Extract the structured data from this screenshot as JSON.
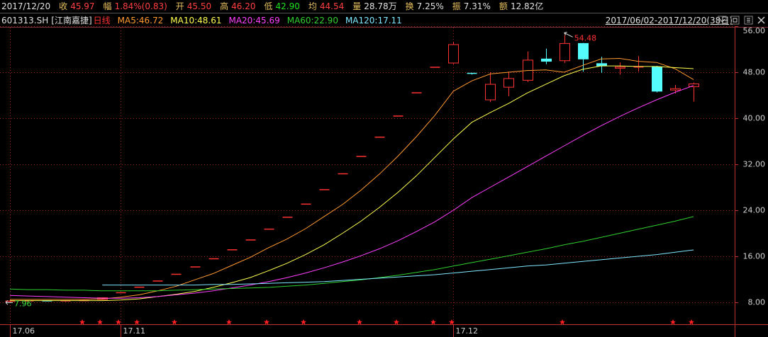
{
  "header": {
    "date": "2017/12/20",
    "quote": [
      {
        "label": "收",
        "value": "45.97",
        "color": "#ff4040"
      },
      {
        "label": "幅",
        "value": "1.84%(0.83)",
        "color": "#ff4040"
      },
      {
        "label": "开",
        "value": "45.50",
        "color": "#ff4040"
      },
      {
        "label": "高",
        "value": "46.20",
        "color": "#ff4040"
      },
      {
        "label": "低",
        "value": "42.90",
        "color": "#20e020"
      },
      {
        "label": "均",
        "value": "44.54",
        "color": "#ff4040"
      },
      {
        "label": "量",
        "value": "28.78万",
        "color": "#e0e0e0"
      },
      {
        "label": "换",
        "value": "7.25%",
        "color": "#e0e0e0"
      },
      {
        "label": "振",
        "value": "7.31%",
        "color": "#e0e0e0"
      },
      {
        "label": "额",
        "value": "12.82亿",
        "color": "#e0e0e0"
      }
    ]
  },
  "chart_data": {
    "type": "candlestick",
    "code": "601313.SH",
    "name": "[江南嘉捷]",
    "period": "日线",
    "range": "2017/06/02-2017/12/20(38日)",
    "categories": [
      "17.06",
      null,
      null,
      null,
      null,
      null,
      "17.11",
      null,
      null,
      null,
      null,
      null,
      null,
      null,
      null,
      null,
      null,
      null,
      null,
      null,
      null,
      null,
      null,
      null,
      "17.12",
      null,
      null,
      null,
      null,
      null,
      null,
      null,
      null,
      null,
      null,
      null,
      null,
      null
    ],
    "open": [
      8.1,
      8.2,
      8.25,
      8.2,
      8.25,
      8.5,
      9.67,
      10.63,
      11.7,
      12.87,
      14.15,
      15.57,
      17.13,
      18.84,
      20.72,
      22.79,
      25.07,
      27.58,
      30.34,
      33.37,
      36.71,
      40.38,
      44.42,
      48.86,
      49.6,
      47.8,
      43.2,
      45.4,
      46.6,
      50.3,
      50.0,
      53.0,
      49.5,
      48.7,
      48.8,
      48.9,
      44.9,
      45.5
    ],
    "high": [
      8.3,
      8.35,
      8.3,
      8.3,
      8.4,
      8.85,
      9.67,
      10.63,
      11.7,
      12.87,
      14.15,
      15.57,
      17.13,
      18.84,
      20.72,
      22.79,
      25.07,
      27.58,
      30.34,
      33.37,
      36.71,
      40.38,
      44.42,
      48.86,
      53.3,
      47.9,
      48.0,
      48.1,
      51.6,
      52.1,
      54.48,
      53.1,
      50.7,
      49.7,
      50.8,
      49.1,
      45.8,
      46.2
    ],
    "low": [
      7.96,
      8.1,
      8.15,
      8.1,
      8.2,
      8.45,
      9.67,
      10.63,
      11.7,
      12.87,
      14.15,
      15.57,
      17.13,
      18.84,
      20.72,
      22.79,
      25.07,
      27.58,
      30.34,
      33.37,
      36.71,
      40.38,
      44.42,
      48.86,
      49.4,
      47.6,
      42.8,
      43.8,
      46.3,
      49.4,
      49.6,
      48.1,
      47.9,
      47.6,
      48.1,
      44.5,
      44.3,
      42.9
    ],
    "close": [
      8.2,
      8.25,
      8.2,
      8.25,
      8.3,
      8.79,
      9.67,
      10.63,
      11.7,
      12.87,
      14.15,
      15.57,
      17.13,
      18.84,
      20.72,
      22.79,
      25.07,
      27.58,
      30.34,
      33.37,
      36.71,
      40.38,
      44.42,
      48.86,
      52.8,
      47.7,
      45.9,
      46.9,
      50.1,
      49.9,
      53.0,
      50.3,
      49.1,
      48.9,
      48.9,
      44.7,
      45.14,
      45.97
    ],
    "up_color": "#ff3232",
    "down_color": "#54fcfc",
    "series": [
      {
        "name": "MA5:46.72",
        "color": "#ff9a30",
        "values": [
          8.5,
          8.5,
          8.5,
          8.5,
          8.5,
          8.6,
          8.9,
          9.3,
          10.0,
          10.8,
          11.9,
          13.0,
          14.4,
          15.8,
          17.5,
          19.0,
          20.8,
          22.9,
          25.0,
          27.5,
          30.3,
          33.4,
          36.8,
          40.5,
          44.7,
          46.5,
          47.7,
          48.0,
          48.3,
          48.4,
          48.0,
          49.2,
          50.3,
          50.4,
          49.9,
          49.7,
          48.6,
          46.72
        ]
      },
      {
        "name": "MA10:48.61",
        "color": "#ffff50",
        "values": [
          8.3,
          8.3,
          8.3,
          8.3,
          8.3,
          8.3,
          8.4,
          8.6,
          9.0,
          9.4,
          9.9,
          10.6,
          11.4,
          12.3,
          13.5,
          14.8,
          16.3,
          18.0,
          20.0,
          22.1,
          24.5,
          27.1,
          30.0,
          33.2,
          36.4,
          39.3,
          41.0,
          42.6,
          44.4,
          45.9,
          47.4,
          48.5,
          49.1,
          49.1,
          49.0,
          49.0,
          48.8,
          48.61
        ]
      },
      {
        "name": "MA20:45.69",
        "color": "#ff40ff",
        "values": [
          9.2,
          9.1,
          9.0,
          8.9,
          8.8,
          8.7,
          8.7,
          8.8,
          9.0,
          9.3,
          9.6,
          10.0,
          10.5,
          11.0,
          11.6,
          12.3,
          13.1,
          14.0,
          15.0,
          16.1,
          17.3,
          18.7,
          20.3,
          22.0,
          24.0,
          26.2,
          28.0,
          29.8,
          31.6,
          33.4,
          35.2,
          37.0,
          38.7,
          40.3,
          41.8,
          43.2,
          44.5,
          45.69
        ]
      },
      {
        "name": "MA60:22.90",
        "color": "#30d030",
        "values": [
          10.3,
          10.2,
          10.2,
          10.1,
          10.1,
          10.0,
          10.0,
          10.0,
          10.0,
          10.1,
          10.2,
          10.3,
          10.4,
          10.5,
          10.6,
          10.8,
          11.0,
          11.3,
          11.6,
          11.9,
          12.3,
          12.7,
          13.2,
          13.7,
          14.3,
          14.9,
          15.5,
          16.1,
          16.7,
          17.3,
          18.0,
          18.6,
          19.3,
          20.0,
          20.7,
          21.4,
          22.1,
          22.9
        ]
      },
      {
        "name": "MA120:17.11",
        "color": "#80e8ff",
        "values": [
          null,
          null,
          null,
          null,
          null,
          11.0,
          11.0,
          11.0,
          11.0,
          11.0,
          11.0,
          11.1,
          11.1,
          11.2,
          11.3,
          11.4,
          11.5,
          11.6,
          11.8,
          12.0,
          12.2,
          12.4,
          12.6,
          12.8,
          13.1,
          13.4,
          13.7,
          14.0,
          14.3,
          14.5,
          14.8,
          15.1,
          15.4,
          15.7,
          16.0,
          16.3,
          16.7,
          17.11
        ]
      }
    ],
    "annotations": {
      "max": "54.48",
      "min": "7.96"
    },
    "ylim": [
      4,
      56
    ],
    "yticks": [
      {
        "value": 8,
        "label": "8.00"
      },
      {
        "value": 16,
        "label": "16.00"
      },
      {
        "value": 24,
        "label": "24.00"
      },
      {
        "value": 32,
        "label": "32.00"
      },
      {
        "value": 40,
        "label": "40.00"
      },
      {
        "value": 48,
        "label": "48.00"
      },
      {
        "value": 56,
        "label": "56.00"
      }
    ],
    "grid": true
  }
}
